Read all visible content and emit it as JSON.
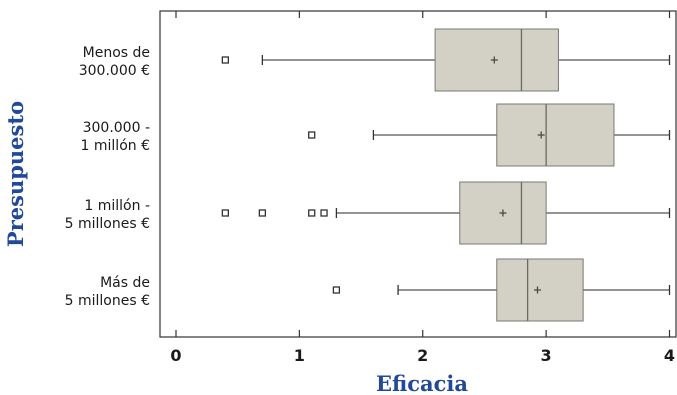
{
  "chart_data": {
    "type": "boxplot",
    "orientation": "horizontal",
    "xlabel": "Eficacia",
    "ylabel": "Presupuesto",
    "xlim": [
      -0.12,
      4.05
    ],
    "xticks": [
      0,
      1,
      2,
      3,
      4
    ],
    "grid": false,
    "categories": [
      {
        "label_lines": [
          "Menos de",
          "300.000 €"
        ],
        "min": 0.7,
        "q1": 2.1,
        "median": 2.8,
        "mean": 2.58,
        "q3": 3.1,
        "max": 4.0,
        "outliers": [
          0.4
        ]
      },
      {
        "label_lines": [
          "300.000 -",
          "1 millón €"
        ],
        "min": 1.6,
        "q1": 2.6,
        "median": 3.0,
        "mean": 2.96,
        "q3": 3.55,
        "max": 4.0,
        "outliers": [
          1.1
        ]
      },
      {
        "label_lines": [
          "1 millón -",
          "5 millones €"
        ],
        "min": 1.3,
        "q1": 2.3,
        "median": 2.8,
        "mean": 2.65,
        "q3": 3.0,
        "max": 4.0,
        "outliers": [
          0.4,
          0.7,
          1.1,
          1.2
        ]
      },
      {
        "label_lines": [
          "Más de",
          "5 millones €"
        ],
        "min": 1.8,
        "q1": 2.6,
        "median": 2.85,
        "mean": 2.93,
        "q3": 3.3,
        "max": 4.0,
        "outliers": [
          1.3
        ]
      }
    ],
    "colors": {
      "box_fill": "#d3d0c6",
      "line": "#555555",
      "title": "#22489a"
    }
  }
}
